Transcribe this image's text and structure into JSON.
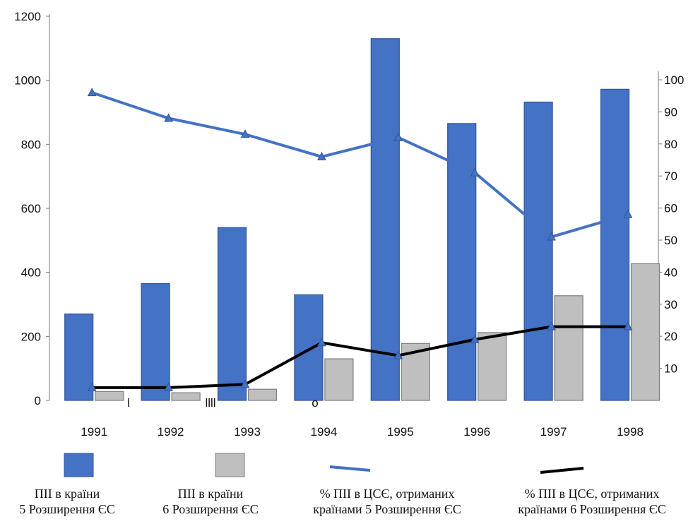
{
  "chart_data": {
    "type": "bar",
    "categories": [
      "1991",
      "1992",
      "1993",
      "1994",
      "1995",
      "1996",
      "1997",
      "1998"
    ],
    "series": [
      {
        "name": "ПІІ в країни 5 Розширення ЄС",
        "kind": "bar",
        "axis": "left",
        "color": "#4472C4",
        "values": [
          270,
          365,
          540,
          330,
          1130,
          865,
          932,
          972
        ]
      },
      {
        "name": "ПІІ в країни 6 Розширення ЄС",
        "kind": "bar",
        "axis": "left",
        "color": "#BFBFBF",
        "values": [
          28,
          24,
          35,
          130,
          178,
          212,
          327,
          427
        ]
      },
      {
        "name": "% ПІІ в ЦСЄ, отриманих країнами 5 Розширення ЄС",
        "kind": "line",
        "axis": "right",
        "color": "#4472C4",
        "values": [
          96,
          88,
          83,
          76,
          82,
          71,
          51,
          58
        ]
      },
      {
        "name": "% ПІІ в ЦСЄ, отриманих країнами 6 Розширення ЄС",
        "kind": "line",
        "axis": "right",
        "color": "#000000",
        "values": [
          4,
          4,
          5,
          18,
          14,
          19,
          23,
          23
        ]
      }
    ],
    "y_left": {
      "min": 0,
      "max": 1200,
      "ticks": [
        "0",
        "200",
        "400",
        "600",
        "800",
        "1000",
        "1200"
      ]
    },
    "y_right": {
      "min": 0,
      "max": 100,
      "ticks": [
        "10",
        "20",
        "30",
        "40",
        "50",
        "60",
        "70",
        "80",
        "90",
        "100"
      ]
    },
    "stray_marks": [
      "l",
      "llll",
      "o"
    ],
    "legend_position": "bottom",
    "grid": false
  },
  "legend": [
    {
      "line1": "ПІІ в країни",
      "line2": "5 Розширення ЄС"
    },
    {
      "line1": "ПІІ в країни",
      "line2": "6 Розширення ЄС"
    },
    {
      "line1": "% ПІІ в ЦСЄ, отриманих",
      "line2": "країнами 5 Розширення ЄС"
    },
    {
      "line1": "% ПІІ в ЦСЄ, отриманих",
      "line2": "країнами 6 Розширення ЄС"
    }
  ]
}
